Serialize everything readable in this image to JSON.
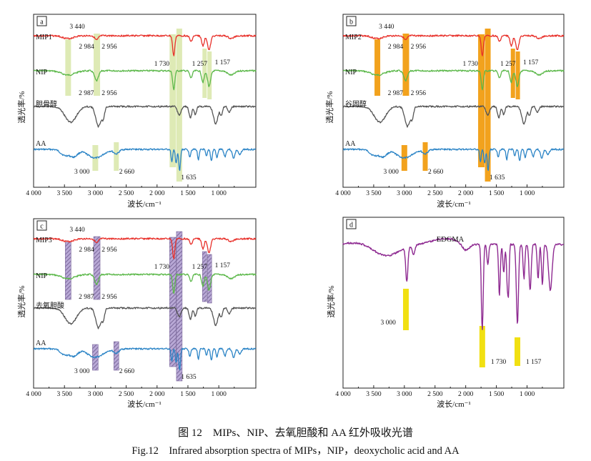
{
  "caption_zh": "图 12　MIPs、NIP、去氧胆酸和 AA 红外吸收光谱",
  "caption_en": "Fig.12　Infrared absorption spectra of MIPs，NIP，deoxycholic acid and AA",
  "colors": {
    "red": "#e8302a",
    "green": "#5cb84a",
    "gray": "#555555",
    "blue": "#2b84c6",
    "purple": "#8e2a91",
    "band_light": "#d8e6a8",
    "band_orange": "#f2a21d",
    "band_hatch": "#7e6c9e",
    "band_yellow": "#f1e012"
  },
  "chart_data": [
    {
      "id": "a",
      "panel_label": "a",
      "type": "line",
      "xlabel": "波长/cm⁻¹",
      "ylabel": "透光率/%",
      "xlim": [
        4000,
        400
      ],
      "xticks": [
        4000,
        3500,
        3000,
        2500,
        2000,
        1500,
        1000
      ],
      "xtick_labels": [
        "4 000",
        "3 500",
        "3 000",
        "2 500",
        "2 000",
        "1 500",
        "1 000"
      ],
      "band_style": "light",
      "series": [
        {
          "name": "MIP1",
          "color": "red"
        },
        {
          "name": "NIP",
          "color": "green"
        },
        {
          "name": "胆骨醇",
          "color": "gray"
        },
        {
          "name": "AA",
          "color": "blue"
        }
      ],
      "annotations": [
        "3 440",
        "2 984",
        "2 956",
        "1 730",
        "1 257",
        "1 157",
        "2 987",
        "2 956",
        "3 000",
        "2 660",
        "1 635"
      ]
    },
    {
      "id": "b",
      "panel_label": "b",
      "type": "line",
      "xlabel": "波长/cm⁻¹",
      "ylabel": "透光率/%",
      "xlim": [
        4000,
        400
      ],
      "xticks": [
        4000,
        3500,
        3000,
        2500,
        2000,
        1500,
        1000
      ],
      "xtick_labels": [
        "4 000",
        "3 500",
        "3 000",
        "2 500",
        "2 000",
        "1 500",
        "1 000"
      ],
      "band_style": "orange",
      "series": [
        {
          "name": "MIP2",
          "color": "red"
        },
        {
          "name": "NIP",
          "color": "green"
        },
        {
          "name": "谷固醇",
          "color": "gray"
        },
        {
          "name": "AA",
          "color": "blue"
        }
      ],
      "annotations": [
        "3 440",
        "2 984",
        "2 956",
        "1 730",
        "1 257",
        "1 157",
        "2 987",
        "2 956",
        "3 000",
        "2 660",
        "1 635"
      ]
    },
    {
      "id": "c",
      "panel_label": "c",
      "type": "line",
      "xlabel": "波长/cm⁻¹",
      "ylabel": "透光率/%",
      "xlim": [
        4000,
        400
      ],
      "xticks": [
        4000,
        3500,
        3000,
        2500,
        2000,
        1500,
        1000
      ],
      "xtick_labels": [
        "4 000",
        "3 500",
        "3 000",
        "2 500",
        "2 000",
        "1 500",
        "1 000"
      ],
      "band_style": "hatch",
      "series": [
        {
          "name": "MIP3",
          "color": "red"
        },
        {
          "name": "NIP",
          "color": "green"
        },
        {
          "name": "去氧胆酸",
          "color": "gray"
        },
        {
          "name": "AA",
          "color": "blue"
        }
      ],
      "annotations": [
        "3 440",
        "2 984",
        "2 956",
        "1 730",
        "1 257",
        "1 157",
        "2 987",
        "2 956",
        "3 000",
        "2 660",
        "1 635"
      ]
    },
    {
      "id": "d",
      "panel_label": "d",
      "type": "line",
      "title": "EDGMA",
      "xlabel": "波长/cm⁻¹",
      "ylabel": "透光率/%",
      "xlim": [
        4000,
        400
      ],
      "xticks": [
        4000,
        3500,
        3000,
        2500,
        2000,
        1500,
        1000
      ],
      "xtick_labels": [
        "4 000",
        "3 500",
        "3 000",
        "2 500",
        "2 000",
        "1 500",
        "1 000"
      ],
      "band_style": "yellow",
      "series": [
        {
          "name": "",
          "color": "purple"
        }
      ],
      "annotations": [
        "3 000",
        "1 730",
        "1 157"
      ]
    }
  ]
}
